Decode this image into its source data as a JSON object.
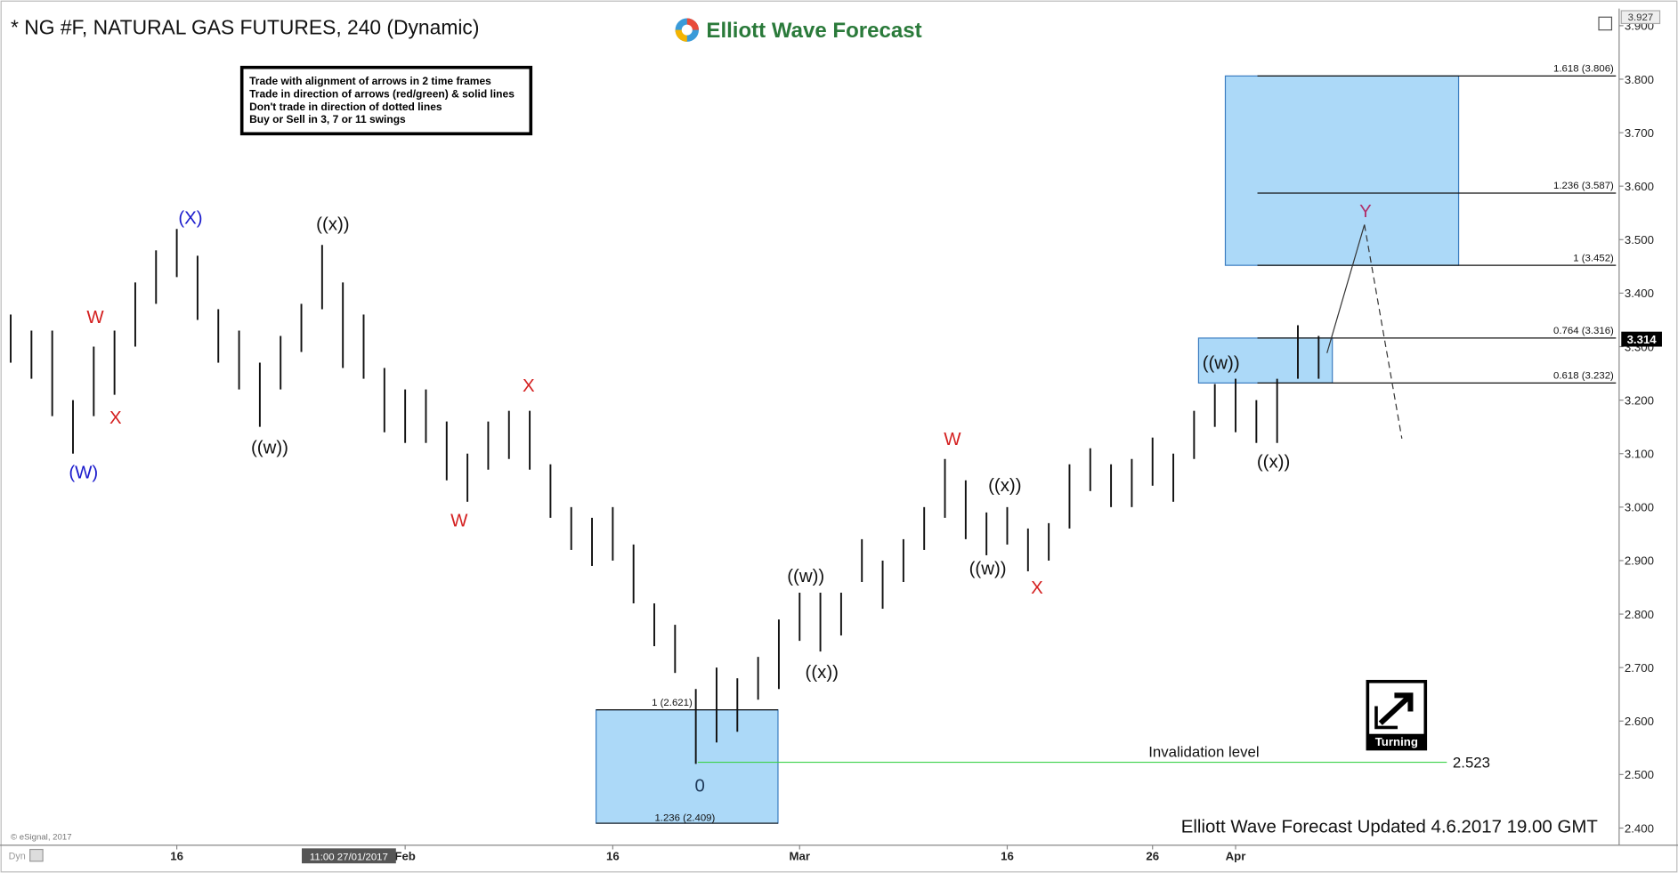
{
  "chart_data": {
    "type": "ohlc",
    "title": "* NG #F, NATURAL GAS FUTURES, 240 (Dynamic)",
    "logo": "Elliott Wave Forecast",
    "rules": [
      "Trade with alignment of arrows in 2 time frames",
      "Trade in direction of arrows (red/green) & solid lines",
      "Don't trade in direction of dotted lines",
      "Buy or Sell in 3, 7 or 11 swings"
    ],
    "copyright": "© eSignal, 2017",
    "footer": "Elliott Wave Forecast Updated 4.6.2017 19.00 GMT",
    "cursor_label": "11:00 27/01/2017",
    "dyn": "Dyn",
    "badge": "Turning",
    "color": "#111111",
    "categories": [
      null,
      null,
      null,
      null,
      null,
      null,
      null,
      null,
      "16",
      null,
      null,
      null,
      null,
      null,
      null,
      null,
      null,
      null,
      null,
      "Feb",
      null,
      null,
      null,
      null,
      null,
      null,
      null,
      null,
      null,
      "16",
      null,
      null,
      null,
      null,
      null,
      null,
      null,
      null,
      "Mar",
      null,
      null,
      null,
      null,
      null,
      null,
      null,
      null,
      null,
      "16",
      null,
      null,
      null,
      null,
      null,
      null,
      "26",
      null,
      null,
      null,
      "Apr",
      null,
      null,
      null,
      null
    ],
    "high": [
      3.36,
      3.33,
      3.33,
      3.2,
      3.3,
      3.33,
      3.42,
      3.48,
      3.52,
      3.47,
      3.37,
      3.33,
      3.27,
      3.32,
      3.38,
      3.49,
      3.42,
      3.36,
      3.26,
      3.22,
      3.22,
      3.16,
      3.1,
      3.16,
      3.18,
      3.18,
      3.08,
      3.0,
      2.98,
      3.0,
      2.93,
      2.82,
      2.78,
      2.66,
      2.7,
      2.68,
      2.72,
      2.79,
      2.84,
      2.84,
      2.84,
      2.94,
      2.9,
      2.94,
      3.0,
      3.09,
      3.05,
      2.99,
      3.0,
      2.96,
      2.97,
      3.08,
      3.11,
      3.08,
      3.09,
      3.13,
      3.1,
      3.18,
      3.23,
      3.24,
      3.2,
      3.24,
      3.34,
      3.32
    ],
    "low": [
      3.27,
      3.24,
      3.17,
      3.1,
      3.17,
      3.21,
      3.3,
      3.38,
      3.43,
      3.35,
      3.27,
      3.22,
      3.15,
      3.22,
      3.29,
      3.37,
      3.26,
      3.24,
      3.14,
      3.12,
      3.12,
      3.05,
      3.01,
      3.07,
      3.09,
      3.07,
      2.98,
      2.92,
      2.89,
      2.9,
      2.82,
      2.74,
      2.69,
      2.52,
      2.56,
      2.58,
      2.64,
      2.66,
      2.75,
      2.73,
      2.76,
      2.86,
      2.81,
      2.86,
      2.92,
      2.98,
      2.94,
      2.91,
      2.93,
      2.88,
      2.9,
      2.96,
      3.03,
      3.0,
      3.0,
      3.04,
      3.01,
      3.09,
      3.15,
      3.14,
      3.12,
      3.12,
      3.24,
      3.24
    ],
    "ylim": [
      2.368,
      3.932
    ],
    "yticks": [
      {
        "value": 2.4,
        "label": "2.400"
      },
      {
        "value": 2.5,
        "label": "2.500"
      },
      {
        "value": 2.6,
        "label": "2.600"
      },
      {
        "value": 2.7,
        "label": "2.700"
      },
      {
        "value": 2.8,
        "label": "2.800"
      },
      {
        "value": 2.9,
        "label": "2.900"
      },
      {
        "value": 3.0,
        "label": "3.000"
      },
      {
        "value": 3.1,
        "label": "3.100"
      },
      {
        "value": 3.2,
        "label": "3.200"
      },
      {
        "value": 3.3,
        "label": "3.300"
      },
      {
        "value": 3.4,
        "label": "3.400"
      },
      {
        "value": 3.5,
        "label": "3.500"
      },
      {
        "value": 3.6,
        "label": "3.600"
      },
      {
        "value": 3.7,
        "label": "3.700"
      },
      {
        "value": 3.8,
        "label": "3.800"
      },
      {
        "value": 3.9,
        "label": "3.900"
      }
    ],
    "top_price": 3.927,
    "last_price": 3.314,
    "levels": [
      {
        "value": 3.806,
        "label": "1.618 (3.806)"
      },
      {
        "value": 3.587,
        "label": "1.236 (3.587)"
      },
      {
        "value": 3.452,
        "label": "1 (3.452)"
      },
      {
        "value": 3.316,
        "label": "0.764 (3.316)"
      },
      {
        "value": 3.232,
        "label": "0.618 (3.232)"
      },
      {
        "value": 2.621,
        "label": "1 (2.621)"
      },
      {
        "value": 2.409,
        "label": "1.236 (2.409)"
      }
    ],
    "invalidation": {
      "label": "Invalidation level",
      "value": 2.523
    },
    "wave_labels": [
      {
        "text": "(W)",
        "color": "#1a1acc"
      },
      {
        "text": "W",
        "color": "#d42020"
      },
      {
        "text": "X",
        "color": "#d42020"
      },
      {
        "text": "(X)",
        "color": "#1a1acc"
      },
      {
        "text": "((w))",
        "color": "#111111"
      },
      {
        "text": "((x))",
        "color": "#111111"
      },
      {
        "text": "W",
        "color": "#d42020"
      },
      {
        "text": "X",
        "color": "#d42020"
      },
      {
        "text": "0",
        "color": "#1f3a5a"
      },
      {
        "text": "((w))",
        "color": "#111111"
      },
      {
        "text": "((x))",
        "color": "#111111"
      },
      {
        "text": "W",
        "color": "#d42020"
      },
      {
        "text": "((x))",
        "color": "#111111"
      },
      {
        "text": "((w))",
        "color": "#111111"
      },
      {
        "text": "X",
        "color": "#d42020"
      },
      {
        "text": "((w))",
        "color": "#111111"
      },
      {
        "text": "((x))",
        "color": "#111111"
      },
      {
        "text": "Y",
        "color": "#b0306a"
      }
    ],
    "box_color": "#acd9f8"
  }
}
